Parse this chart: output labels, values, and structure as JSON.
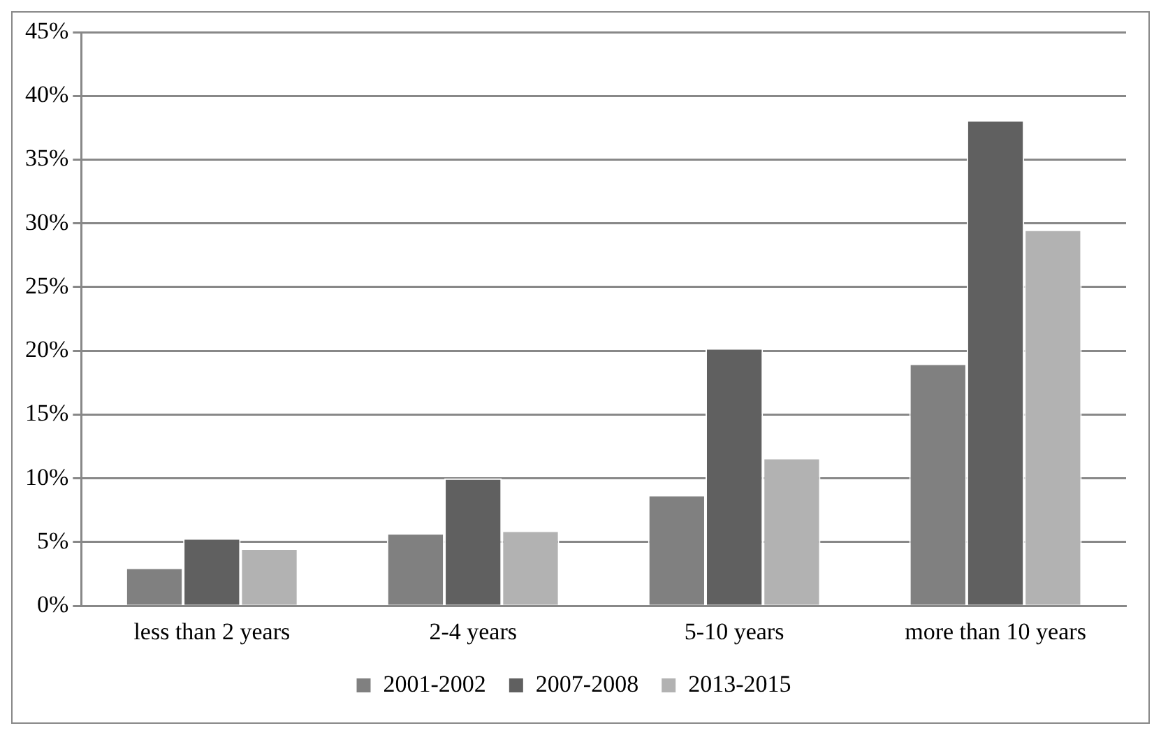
{
  "chart_data": {
    "type": "bar",
    "categories": [
      "less than 2 years",
      "2-4 years",
      "5-10 years",
      "more than 10 years"
    ],
    "series": [
      {
        "name": "2001-2002",
        "color": "#808080",
        "values": [
          3.0,
          5.7,
          8.7,
          19.0
        ]
      },
      {
        "name": "2007-2008",
        "color": "#606060",
        "values": [
          5.3,
          10.0,
          20.2,
          38.1
        ]
      },
      {
        "name": "2013-2015",
        "color": "#b2b2b2",
        "values": [
          4.5,
          5.9,
          11.6,
          29.5
        ]
      }
    ],
    "ylim": [
      0,
      45
    ],
    "yticks": [
      {
        "value": 0,
        "label": "0%"
      },
      {
        "value": 5,
        "label": "5%"
      },
      {
        "value": 10,
        "label": "10%"
      },
      {
        "value": 15,
        "label": "15%"
      },
      {
        "value": 20,
        "label": "20%"
      },
      {
        "value": 25,
        "label": "25%"
      },
      {
        "value": 30,
        "label": "30%"
      },
      {
        "value": 35,
        "label": "35%"
      },
      {
        "value": 40,
        "label": "40%"
      },
      {
        "value": 45,
        "label": "45%"
      }
    ],
    "grid": "y",
    "legend": "bottom"
  }
}
